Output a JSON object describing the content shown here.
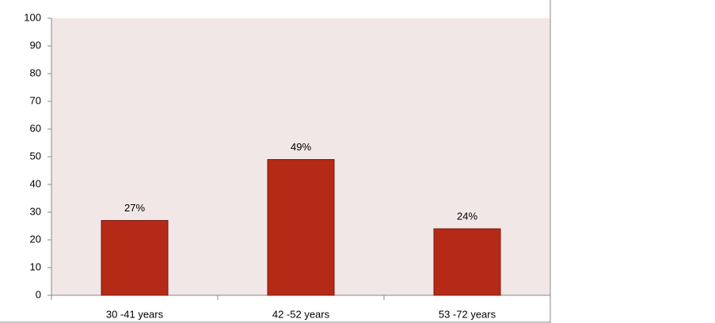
{
  "chart_data": {
    "type": "bar",
    "categories": [
      "30 -41 years",
      "42 -52 years",
      "53 -72 years"
    ],
    "values": [
      27,
      49,
      24
    ],
    "value_labels": [
      "27%",
      "49%",
      "24%"
    ],
    "color": "#b42a17",
    "ylim": [
      0,
      100
    ],
    "yticks": [
      0,
      10,
      20,
      30,
      40,
      50,
      60,
      70,
      80,
      90,
      100
    ],
    "grid": false
  }
}
